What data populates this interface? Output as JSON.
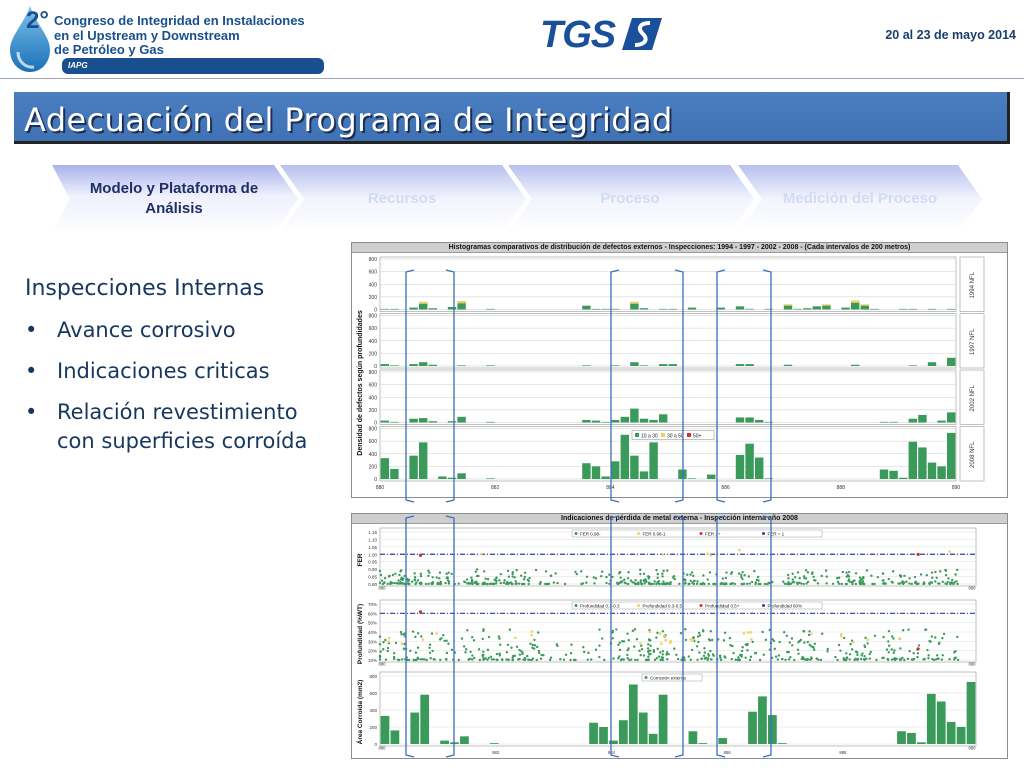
{
  "header": {
    "logo_number": "2°",
    "conference": [
      "Congreso de Integridad en Instalaciones",
      "en el Upstream y Downstream",
      "de Petróleo y Gas"
    ],
    "iapg": "IAPG",
    "brand": "TGS",
    "dates": "20 al 23 de mayo 2014"
  },
  "title": "Adecuación del Programa de Integridad",
  "steps": [
    {
      "label": "Modelo y Plataforma de Análisis",
      "active": true
    },
    {
      "label": "Recursos",
      "active": false
    },
    {
      "label": "Proceso",
      "active": false
    },
    {
      "label": "Medición del Proceso",
      "active": false
    }
  ],
  "content": {
    "heading": "Inspecciones Internas",
    "bullet_glyph": "•",
    "bullets": [
      [
        "Avance corrosivo"
      ],
      [
        "Indicaciones criticas"
      ],
      [
        "Relación revestimiento",
        "con superficies corroída"
      ]
    ]
  },
  "colors": {
    "bar": "#3a9a5a",
    "accent_yellow": "#f0d060",
    "accent_red": "#d03030",
    "bracket": "#3b6fb8",
    "fer_line": "#2a3f9c"
  },
  "chart_data": [
    {
      "type": "bar",
      "title": "Histogramas comparativos de distribución de defectos externos - Inspecciones: 1994 - 1997 - 2002 - 2008 - (Cada intervalos de 200 metros)",
      "ylabel": "Densidad de defectos según profundidades",
      "xlim": [
        880,
        890
      ],
      "x_ticks": [
        880,
        882,
        884,
        886,
        888,
        890
      ],
      "ylim": [
        0,
        800
      ],
      "y_ticks": [
        0,
        200,
        400,
        600,
        800
      ],
      "legend": [
        "10 a 30",
        "30 a 50",
        "50+"
      ],
      "panels": [
        {
          "label": "1994 NFL",
          "values": [
            10,
            10,
            0,
            30,
            120,
            20,
            0,
            40,
            130,
            0,
            0,
            10,
            0,
            0,
            0,
            0,
            0,
            0,
            0,
            0,
            0,
            60,
            10,
            10,
            10,
            0,
            120,
            20,
            0,
            10,
            10,
            0,
            30,
            0,
            0,
            30,
            0,
            50,
            10,
            0,
            10,
            0,
            80,
            10,
            20,
            50,
            80,
            0,
            30,
            140,
            80,
            10,
            0,
            0,
            10,
            10,
            0,
            10,
            0,
            10
          ]
        },
        {
          "label": "1997 NFL",
          "values": [
            30,
            10,
            0,
            30,
            60,
            20,
            0,
            0,
            10,
            0,
            0,
            10,
            0,
            0,
            0,
            0,
            0,
            0,
            0,
            0,
            0,
            10,
            0,
            0,
            10,
            0,
            60,
            10,
            0,
            30,
            30,
            0,
            0,
            0,
            0,
            0,
            0,
            30,
            30,
            0,
            0,
            0,
            20,
            0,
            0,
            0,
            0,
            0,
            0,
            20,
            0,
            0,
            0,
            0,
            0,
            10,
            0,
            60,
            0,
            130
          ]
        },
        {
          "label": "2002 NFL",
          "values": [
            30,
            10,
            0,
            60,
            70,
            20,
            0,
            20,
            90,
            0,
            0,
            10,
            0,
            0,
            0,
            0,
            0,
            0,
            0,
            0,
            0,
            40,
            30,
            10,
            40,
            90,
            220,
            60,
            40,
            130,
            0,
            0,
            0,
            0,
            0,
            0,
            0,
            80,
            80,
            40,
            10,
            0,
            0,
            0,
            0,
            0,
            0,
            0,
            0,
            0,
            0,
            0,
            10,
            10,
            0,
            60,
            120,
            0,
            30,
            160
          ]
        },
        {
          "label": "2008 NFL",
          "values": [
            330,
            160,
            0,
            370,
            580,
            0,
            40,
            20,
            90,
            0,
            0,
            10,
            0,
            0,
            0,
            0,
            0,
            0,
            0,
            0,
            0,
            250,
            200,
            40,
            280,
            700,
            370,
            120,
            580,
            0,
            0,
            150,
            10,
            0,
            70,
            0,
            0,
            380,
            560,
            340,
            10,
            0,
            0,
            0,
            0,
            0,
            0,
            0,
            0,
            0,
            0,
            0,
            150,
            130,
            20,
            590,
            500,
            260,
            200,
            730
          ]
        }
      ]
    },
    {
      "type": "scatter",
      "title": "Indicaciones de pérdida de metal externa - Inspección interna año 2008",
      "x_ticks": [
        880,
        882,
        884,
        886,
        888,
        890
      ],
      "panels": [
        {
          "ylabel": "FER",
          "y_ticks": [
            "0.80",
            "0.85",
            "0.90",
            "0.95",
            "1.00",
            "1.05",
            "1.10",
            "1.15"
          ],
          "ylim": [
            0.8,
            1.15
          ],
          "legend": [
            "FER 0.98-",
            "FER 0.98-1",
            "FER 1+",
            "FER = 1"
          ],
          "reference": 1.0
        },
        {
          "ylabel": "Profundidad (%WT)",
          "y_ticks": [
            "10%",
            "20%",
            "30%",
            "40%",
            "50%",
            "60%",
            "70%"
          ],
          "ylim": [
            10,
            70
          ],
          "legend": [
            "Profundidad 0.1-0.3",
            "Profundidad 0.3-0.5",
            "Profundidad 0.5+",
            "Profundidad 60%"
          ],
          "reference": 60
        },
        {
          "ylabel": "Área Corroída (mm2)",
          "type": "bar",
          "y_ticks": [
            "0",
            "200",
            "400",
            "600",
            "800"
          ],
          "ylim": [
            0,
            800
          ],
          "legend": [
            "Corrosión externa"
          ],
          "values": [
            330,
            160,
            0,
            370,
            580,
            0,
            40,
            20,
            90,
            0,
            0,
            10,
            0,
            0,
            0,
            0,
            0,
            0,
            0,
            0,
            0,
            250,
            200,
            40,
            280,
            700,
            370,
            120,
            580,
            0,
            0,
            150,
            10,
            0,
            70,
            0,
            0,
            380,
            560,
            340,
            10,
            0,
            0,
            0,
            0,
            0,
            0,
            0,
            0,
            0,
            0,
            0,
            150,
            130,
            20,
            590,
            500,
            260,
            200,
            730
          ]
        }
      ]
    }
  ]
}
